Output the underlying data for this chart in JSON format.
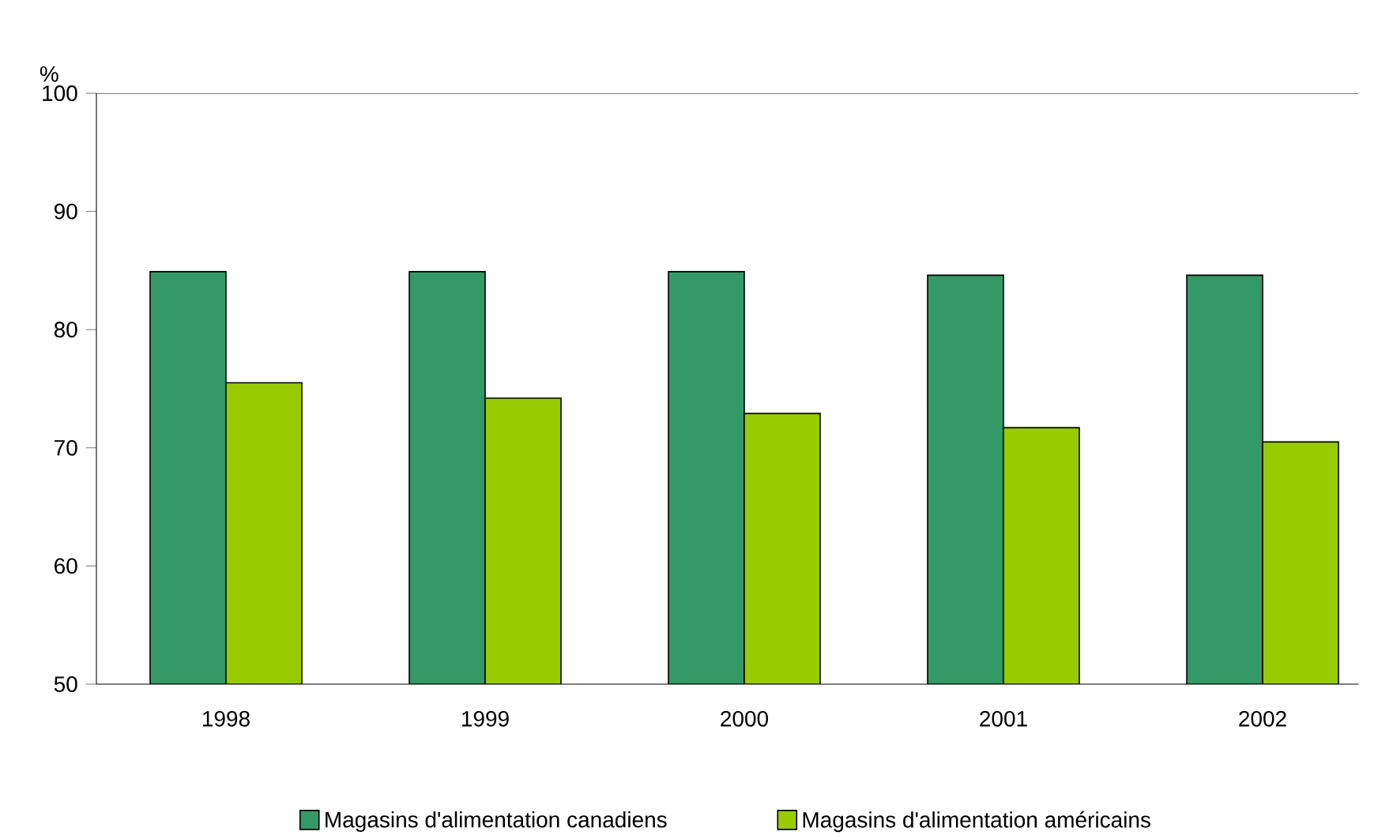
{
  "chart_data": {
    "type": "bar",
    "ylabel": "%",
    "categories": [
      "1998",
      "1999",
      "2000",
      "2001",
      "2002"
    ],
    "series": [
      {
        "name": "Magasins d'alimentation canadiens",
        "color": "#339966",
        "values": [
          84.9,
          84.9,
          84.9,
          84.6,
          84.6
        ]
      },
      {
        "name": "Magasins d'alimentation américains",
        "color": "#99cc00",
        "values": [
          75.5,
          74.2,
          72.9,
          71.7,
          70.5
        ]
      }
    ],
    "ylim": [
      50,
      100
    ],
    "yticks": [
      50,
      60,
      70,
      80,
      90,
      100
    ],
    "grid": false,
    "legend": "bottom"
  }
}
